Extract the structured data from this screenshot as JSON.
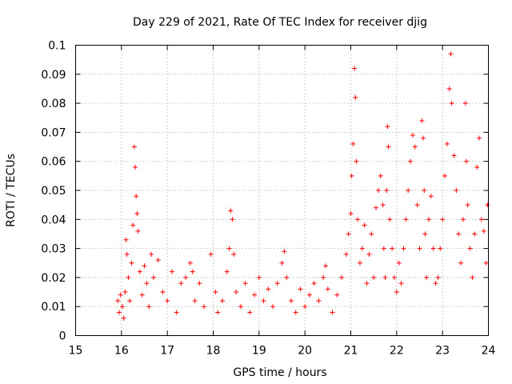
{
  "chart_data": {
    "type": "scatter",
    "title": "Day 229 of 2021, Rate Of TEC Index for receiver djig",
    "xlabel": "GPS time / hours",
    "ylabel": "ROTI / TECUs",
    "xlim": [
      15,
      24
    ],
    "ylim": [
      0,
      0.1
    ],
    "grid": true,
    "x_ticks": [
      "15",
      "16",
      "17",
      "18",
      "19",
      "20",
      "21",
      "22",
      "23",
      "24"
    ],
    "y_ticks": [
      "0",
      "0.01",
      "0.02",
      "0.03",
      "0.04",
      "0.05",
      "0.06",
      "0.07",
      "0.08",
      "0.09",
      "0.1"
    ],
    "marker": "+",
    "color": "#ff0000",
    "series": [
      {
        "name": "ROTI",
        "points": [
          [
            15.92,
            0.012
          ],
          [
            15.95,
            0.008
          ],
          [
            15.98,
            0.014
          ],
          [
            16.02,
            0.01
          ],
          [
            16.05,
            0.006
          ],
          [
            16.08,
            0.015
          ],
          [
            16.1,
            0.033
          ],
          [
            16.12,
            0.028
          ],
          [
            16.15,
            0.02
          ],
          [
            16.18,
            0.012
          ],
          [
            16.22,
            0.025
          ],
          [
            16.25,
            0.038
          ],
          [
            16.28,
            0.065
          ],
          [
            16.3,
            0.058
          ],
          [
            16.32,
            0.048
          ],
          [
            16.34,
            0.042
          ],
          [
            16.36,
            0.036
          ],
          [
            16.4,
            0.022
          ],
          [
            16.45,
            0.014
          ],
          [
            16.5,
            0.024
          ],
          [
            16.55,
            0.018
          ],
          [
            16.6,
            0.01
          ],
          [
            16.65,
            0.028
          ],
          [
            16.7,
            0.02
          ],
          [
            16.8,
            0.026
          ],
          [
            16.9,
            0.015
          ],
          [
            17.0,
            0.012
          ],
          [
            17.1,
            0.022
          ],
          [
            17.2,
            0.008
          ],
          [
            17.3,
            0.018
          ],
          [
            17.4,
            0.02
          ],
          [
            17.5,
            0.025
          ],
          [
            17.55,
            0.022
          ],
          [
            17.6,
            0.012
          ],
          [
            17.7,
            0.018
          ],
          [
            17.8,
            0.01
          ],
          [
            17.95,
            0.028
          ],
          [
            18.05,
            0.015
          ],
          [
            18.1,
            0.008
          ],
          [
            18.2,
            0.012
          ],
          [
            18.3,
            0.022
          ],
          [
            18.35,
            0.03
          ],
          [
            18.38,
            0.043
          ],
          [
            18.42,
            0.04
          ],
          [
            18.45,
            0.028
          ],
          [
            18.5,
            0.015
          ],
          [
            18.6,
            0.01
          ],
          [
            18.7,
            0.018
          ],
          [
            18.8,
            0.008
          ],
          [
            18.9,
            0.014
          ],
          [
            19.0,
            0.02
          ],
          [
            19.1,
            0.012
          ],
          [
            19.2,
            0.016
          ],
          [
            19.3,
            0.01
          ],
          [
            19.4,
            0.018
          ],
          [
            19.5,
            0.025
          ],
          [
            19.55,
            0.029
          ],
          [
            19.6,
            0.02
          ],
          [
            19.7,
            0.012
          ],
          [
            19.8,
            0.008
          ],
          [
            19.9,
            0.016
          ],
          [
            20.0,
            0.01
          ],
          [
            20.1,
            0.014
          ],
          [
            20.2,
            0.018
          ],
          [
            20.3,
            0.012
          ],
          [
            20.4,
            0.02
          ],
          [
            20.45,
            0.024
          ],
          [
            20.5,
            0.016
          ],
          [
            20.6,
            0.008
          ],
          [
            20.7,
            0.014
          ],
          [
            20.8,
            0.02
          ],
          [
            20.9,
            0.028
          ],
          [
            20.95,
            0.035
          ],
          [
            21.0,
            0.042
          ],
          [
            21.02,
            0.055
          ],
          [
            21.05,
            0.066
          ],
          [
            21.08,
            0.092
          ],
          [
            21.1,
            0.082
          ],
          [
            21.12,
            0.06
          ],
          [
            21.15,
            0.04
          ],
          [
            21.2,
            0.025
          ],
          [
            21.25,
            0.03
          ],
          [
            21.3,
            0.038
          ],
          [
            21.35,
            0.018
          ],
          [
            21.4,
            0.028
          ],
          [
            21.45,
            0.035
          ],
          [
            21.5,
            0.02
          ],
          [
            21.55,
            0.044
          ],
          [
            21.6,
            0.05
          ],
          [
            21.65,
            0.055
          ],
          [
            21.7,
            0.045
          ],
          [
            21.72,
            0.03
          ],
          [
            21.75,
            0.02
          ],
          [
            21.78,
            0.05
          ],
          [
            21.8,
            0.072
          ],
          [
            21.82,
            0.065
          ],
          [
            21.85,
            0.04
          ],
          [
            21.9,
            0.03
          ],
          [
            21.95,
            0.02
          ],
          [
            22.0,
            0.015
          ],
          [
            22.05,
            0.025
          ],
          [
            22.1,
            0.018
          ],
          [
            22.15,
            0.03
          ],
          [
            22.2,
            0.04
          ],
          [
            22.25,
            0.05
          ],
          [
            22.3,
            0.06
          ],
          [
            22.35,
            0.069
          ],
          [
            22.4,
            0.065
          ],
          [
            22.45,
            0.045
          ],
          [
            22.5,
            0.03
          ],
          [
            22.55,
            0.074
          ],
          [
            22.58,
            0.068
          ],
          [
            22.6,
            0.05
          ],
          [
            22.62,
            0.035
          ],
          [
            22.65,
            0.02
          ],
          [
            22.7,
            0.04
          ],
          [
            22.75,
            0.048
          ],
          [
            22.8,
            0.03
          ],
          [
            22.85,
            0.018
          ],
          [
            22.9,
            0.02
          ],
          [
            22.95,
            0.03
          ],
          [
            23.0,
            0.04
          ],
          [
            23.05,
            0.055
          ],
          [
            23.1,
            0.066
          ],
          [
            23.15,
            0.085
          ],
          [
            23.18,
            0.097
          ],
          [
            23.2,
            0.08
          ],
          [
            23.25,
            0.062
          ],
          [
            23.3,
            0.05
          ],
          [
            23.35,
            0.035
          ],
          [
            23.4,
            0.025
          ],
          [
            23.45,
            0.04
          ],
          [
            23.5,
            0.08
          ],
          [
            23.52,
            0.06
          ],
          [
            23.55,
            0.045
          ],
          [
            23.6,
            0.03
          ],
          [
            23.65,
            0.02
          ],
          [
            23.7,
            0.035
          ],
          [
            23.75,
            0.058
          ],
          [
            23.8,
            0.068
          ],
          [
            23.85,
            0.04
          ],
          [
            23.9,
            0.036
          ],
          [
            23.95,
            0.025
          ],
          [
            23.98,
            0.045
          ]
        ]
      }
    ]
  }
}
